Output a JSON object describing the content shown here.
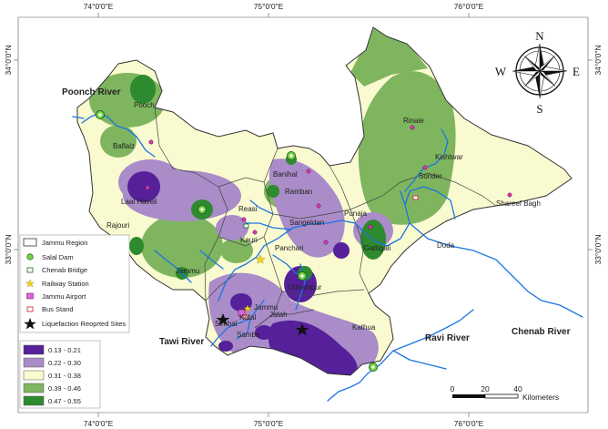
{
  "colors": {
    "class1": "#55209a",
    "class2": "#a98cc8",
    "class3": "#fafad0",
    "class4": "#7fb55f",
    "class5": "#2e8a2e",
    "river": "#1a75e0",
    "district_border": "#333333",
    "dot": "#d63aa8"
  },
  "graticule": {
    "lon_top": [
      "74°0'0\"E",
      "75°0'0\"E",
      "76°0'0\"E"
    ],
    "lon_bottom": [
      "74°0'0\"E",
      "75°0'0\"E",
      "76°0'0\"E"
    ],
    "lat_left": [
      "34°0'0\"N",
      "33°0'0\"N"
    ],
    "lat_right": [
      "34°0'0\"N",
      "33°0'0\"N"
    ]
  },
  "compass": {
    "n": "N",
    "s": "S",
    "e": "E",
    "w": "W"
  },
  "rivers": {
    "poonch": "Poonch River",
    "tawi": "Tawi River",
    "ravi": "Ravi River",
    "chenab": "Chenab River"
  },
  "places": [
    {
      "id": "pooch",
      "label": "Pooch"
    },
    {
      "id": "baflaiz",
      "label": "Baflaiz"
    },
    {
      "id": "laal-haveli",
      "label": "Laal Haveli"
    },
    {
      "id": "rajouri",
      "label": "Rajouri"
    },
    {
      "id": "reasi",
      "label": "Reasi"
    },
    {
      "id": "kauri",
      "label": "Kauri"
    },
    {
      "id": "panchari",
      "label": "Panchari"
    },
    {
      "id": "jammu-west",
      "label": "Jammu"
    },
    {
      "id": "banihal",
      "label": "Banihal"
    },
    {
      "id": "ramban",
      "label": "Ramban"
    },
    {
      "id": "sangeldan",
      "label": "Sangeldan"
    },
    {
      "id": "punaja",
      "label": "Punaja"
    },
    {
      "id": "gattigali",
      "label": "Gattigali"
    },
    {
      "id": "doda",
      "label": "Doda"
    },
    {
      "id": "udhampur",
      "label": "Udhampur"
    },
    {
      "id": "kathua",
      "label": "Kathua"
    },
    {
      "id": "rinaie",
      "label": "Rinaie"
    },
    {
      "id": "kishtwar",
      "label": "Kishtwar"
    },
    {
      "id": "sonder",
      "label": "Sonder"
    },
    {
      "id": "shareef-bagh",
      "label": "Shareef Bagh"
    },
    {
      "id": "simbal",
      "label": "Simbal"
    },
    {
      "id": "samba",
      "label": "Samba"
    },
    {
      "id": "katal",
      "label": "Katal"
    },
    {
      "id": "jatah",
      "label": "Jatah"
    },
    {
      "id": "jammu-city",
      "label": "Jammu"
    }
  ],
  "legend_symbols": [
    {
      "id": "region",
      "label": "Jammu Region",
      "icon": "boundary-box"
    },
    {
      "id": "salal",
      "label": "Salal Dam",
      "icon": "dam-icon"
    },
    {
      "id": "chenab-bridge",
      "label": "Chenab Bridge",
      "icon": "bridge-icon"
    },
    {
      "id": "railway",
      "label": "Railway Station",
      "icon": "star-icon"
    },
    {
      "id": "airport",
      "label": "Jammu Airport",
      "icon": "airport-icon"
    },
    {
      "id": "bus",
      "label": "Bus Stand",
      "icon": "bus-icon"
    },
    {
      "id": "liquefaction",
      "label": "Liquefaction Reoprted Sites",
      "icon": "black-star-icon"
    }
  ],
  "legend_classes": [
    {
      "label": "0.13 - 0.21",
      "color": "#55209a"
    },
    {
      "label": "0.22 - 0.30",
      "color": "#a98cc8"
    },
    {
      "label": "0.31 - 0.38",
      "color": "#fafad0"
    },
    {
      "label": "0.39 - 0.46",
      "color": "#7fb55f"
    },
    {
      "label": "0.47 - 0.55",
      "color": "#2e8a2e"
    }
  ],
  "scalebar": {
    "ticks": [
      "0",
      "20",
      "40"
    ],
    "unit": "Kilometers"
  }
}
